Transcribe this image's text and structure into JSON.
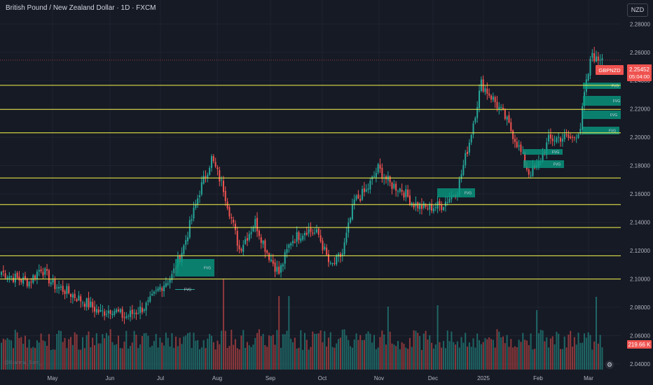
{
  "header": {
    "title": "British Pound / New Zealand Dollar · 1D · FXCM",
    "currency_button": "NZD"
  },
  "watermark": "@Brahma_Sam_",
  "colors": {
    "background": "#161a25",
    "up": "#26a69a",
    "down": "#ef5350",
    "level": "#f7f74c",
    "fvg": "#089981",
    "grid": "#1f2330",
    "text": "#b2b5be"
  },
  "price_tag": {
    "symbol": "GBPNZD",
    "price": "2.25452",
    "countdown": "05:04:00"
  },
  "volume_tag": "219.66 K",
  "fvg_label": "FVG",
  "icons": {
    "settings": "settings-gear-icon"
  },
  "chart_data": {
    "type": "candlestick",
    "y_axis": {
      "range": [
        2.036,
        2.292
      ],
      "ticks": [
        "2.28000",
        "2.26000",
        "2.24000",
        "2.22000",
        "2.20000",
        "2.18000",
        "2.16000",
        "2.14000",
        "2.12000",
        "2.10000",
        "2.08000",
        "2.06000",
        "2.04000"
      ]
    },
    "x_axis": {
      "ticks": [
        "May",
        "Jun",
        "Jul",
        "Aug",
        "Sep",
        "Oct",
        "Nov",
        "Dec",
        "2025",
        "Feb",
        "Mar"
      ]
    },
    "grid": true,
    "levels": [
      "2.23672",
      "2.21973",
      "2.20316",
      "2.17131",
      "2.15249",
      "2.13633",
      "2.11640",
      "2.09995"
    ],
    "anchors": [
      [
        0,
        2.105
      ],
      [
        8,
        2.1
      ],
      [
        14,
        2.098
      ],
      [
        20,
        2.108
      ],
      [
        26,
        2.096
      ],
      [
        32,
        2.092
      ],
      [
        38,
        2.087
      ],
      [
        44,
        2.082
      ],
      [
        50,
        2.076
      ],
      [
        56,
        2.079
      ],
      [
        62,
        2.073
      ],
      [
        68,
        2.077
      ],
      [
        74,
        2.082
      ],
      [
        80,
        2.094
      ],
      [
        86,
        2.102
      ],
      [
        92,
        2.123
      ],
      [
        100,
        2.162
      ],
      [
        106,
        2.185
      ],
      [
        112,
        2.164
      ],
      [
        120,
        2.121
      ],
      [
        128,
        2.14
      ],
      [
        134,
        2.119
      ],
      [
        140,
        2.104
      ],
      [
        146,
        2.127
      ],
      [
        154,
        2.135
      ],
      [
        160,
        2.131
      ],
      [
        166,
        2.108
      ],
      [
        172,
        2.118
      ],
      [
        178,
        2.155
      ],
      [
        184,
        2.162
      ],
      [
        190,
        2.178
      ],
      [
        196,
        2.167
      ],
      [
        202,
        2.163
      ],
      [
        208,
        2.153
      ],
      [
        214,
        2.15
      ],
      [
        222,
        2.152
      ],
      [
        230,
        2.163
      ],
      [
        236,
        2.197
      ],
      [
        242,
        2.238
      ],
      [
        248,
        2.227
      ],
      [
        254,
        2.214
      ],
      [
        260,
        2.196
      ],
      [
        266,
        2.175
      ],
      [
        270,
        2.178
      ],
      [
        276,
        2.198
      ],
      [
        282,
        2.2
      ],
      [
        288,
        2.199
      ],
      [
        292,
        2.207
      ],
      [
        294,
        2.23
      ],
      [
        296,
        2.245
      ],
      [
        298,
        2.26
      ],
      [
        300,
        2.254
      ],
      [
        303,
        2.258
      ]
    ]
  }
}
